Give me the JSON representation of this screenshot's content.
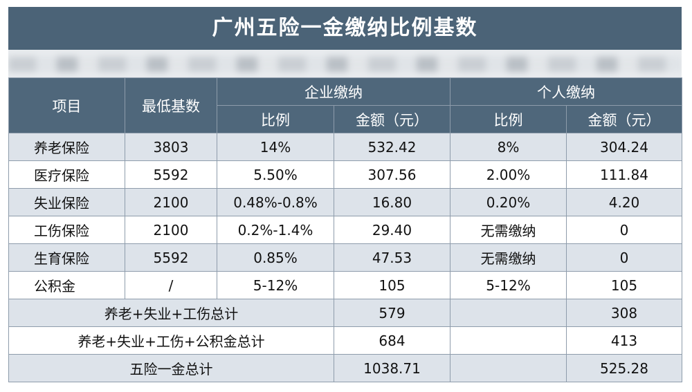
{
  "title": "广州五险一金缴纳比例基数",
  "table": {
    "headers": [
      "项目",
      "最低基数",
      "企业缴纳",
      "个人缴纳"
    ],
    "subheaders": [
      "比例",
      "金额（元）",
      "比例",
      "金额（元）"
    ],
    "rows": [
      [
        "养老保险",
        "3803",
        "14%",
        "532.42",
        "8%",
        "304.24"
      ],
      [
        "医疗保险",
        "5592",
        "5.50%",
        "307.56",
        "2.00%",
        "111.84"
      ],
      [
        "失业保险",
        "2100",
        "0.48%-0.8%",
        "16.80",
        "0.20%",
        "4.20"
      ],
      [
        "工伤保险",
        "2100",
        "0.2%-1.4%",
        "29.40",
        "无需缴纳",
        "0"
      ],
      [
        "生育保险",
        "5592",
        "0.85%",
        "47.53",
        "无需缴纳",
        "0"
      ],
      [
        "公积金",
        "/",
        "5-12%",
        "105",
        "5-12%",
        "105"
      ]
    ],
    "totals": [
      [
        "养老+失业+工伤总计",
        "579",
        "308"
      ],
      [
        "养老+失业+工伤+公积金总计",
        "684",
        "413"
      ],
      [
        "五险一金总计",
        "1038.71",
        "525.28"
      ]
    ]
  }
}
